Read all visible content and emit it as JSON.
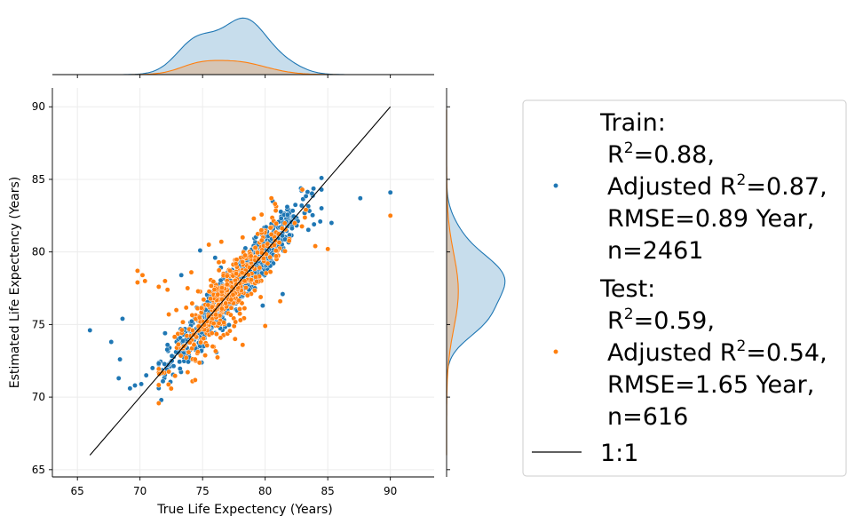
{
  "chart_data": {
    "type": "scatter",
    "xlabel": "True Life Expectency (Years)",
    "ylabel": "Estimated Life Expectency (Years)",
    "xlim": [
      63,
      93.5
    ],
    "ylim": [
      64.5,
      91.3
    ],
    "xticks": [
      65,
      70,
      75,
      80,
      85,
      90
    ],
    "yticks": [
      65,
      70,
      75,
      80,
      85,
      90
    ],
    "grid": true,
    "legend_position": "right",
    "colors": {
      "train": "#1f77b4",
      "test": "#ff7f0e",
      "line": "#000000"
    },
    "identity_line": {
      "label": "1:1",
      "x": [
        66,
        90
      ],
      "y": [
        66,
        90
      ]
    },
    "series": [
      {
        "key": "train",
        "legend_lines": [
          "Train:",
          "R2=0.88,",
          "Adjusted R2=0.87,",
          "RMSE=0.89 Year,",
          "n=2461"
        ],
        "n": 2461,
        "r2": 0.88,
        "adjusted_r2": 0.87,
        "rmse": 0.89,
        "outliers": [
          [
            66.0,
            74.6
          ],
          [
            67.7,
            73.8
          ],
          [
            68.4,
            72.6
          ],
          [
            68.6,
            75.4
          ],
          [
            68.3,
            71.3
          ],
          [
            69.2,
            70.6
          ],
          [
            69.6,
            70.8
          ],
          [
            70.1,
            70.9
          ],
          [
            70.5,
            71.5
          ],
          [
            71.0,
            72.0
          ],
          [
            72.0,
            74.4
          ],
          [
            72.2,
            73.6
          ],
          [
            73.3,
            78.4
          ],
          [
            74.8,
            80.1
          ],
          [
            76.0,
            79.6
          ],
          [
            83.9,
            81.9
          ],
          [
            84.4,
            82.1
          ],
          [
            85.3,
            82.0
          ],
          [
            87.6,
            83.7
          ],
          [
            90.0,
            84.1
          ],
          [
            79.8,
            76.3
          ],
          [
            81.4,
            77.1
          ],
          [
            80.6,
            83.5
          ]
        ]
      },
      {
        "key": "test",
        "legend_lines": [
          "Test:",
          "R2=0.59,",
          "Adjusted R2=0.54,",
          "RMSE=1.65 Year,",
          "n=616"
        ],
        "n": 616,
        "r2": 0.59,
        "adjusted_r2": 0.54,
        "rmse": 1.65,
        "outliers": [
          [
            69.8,
            78.7
          ],
          [
            69.8,
            77.9
          ],
          [
            70.2,
            78.4
          ],
          [
            70.4,
            78.0
          ],
          [
            71.5,
            77.6
          ],
          [
            72.0,
            78.0
          ],
          [
            72.2,
            77.4
          ],
          [
            72.9,
            76.0
          ],
          [
            73.8,
            77.5
          ],
          [
            74.1,
            78.6
          ],
          [
            74.3,
            74.3
          ],
          [
            72.3,
            75.7
          ],
          [
            73.5,
            73.5
          ],
          [
            74.4,
            72.6
          ],
          [
            75.5,
            80.5
          ],
          [
            76.5,
            80.7
          ],
          [
            78.2,
            81.0
          ],
          [
            78.2,
            73.6
          ],
          [
            77.6,
            74.0
          ],
          [
            80.0,
            74.9
          ],
          [
            81.2,
            76.6
          ],
          [
            80.5,
            83.7
          ],
          [
            84.0,
            80.4
          ],
          [
            85.0,
            80.2
          ],
          [
            90.0,
            82.5
          ]
        ]
      }
    ]
  }
}
